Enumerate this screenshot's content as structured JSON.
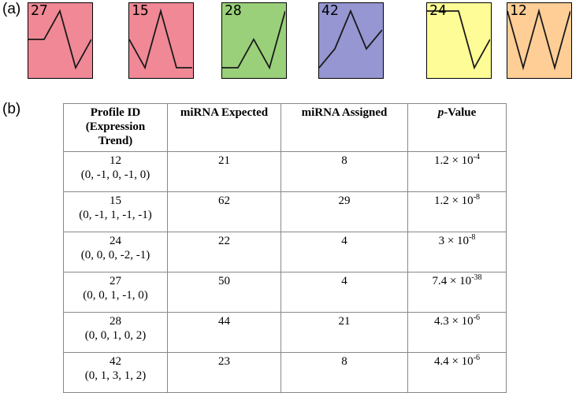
{
  "panel_a_label": "(a)",
  "panel_b_label": "(b)",
  "profiles": [
    {
      "id": "27",
      "color": "#f08896",
      "trend": [
        0,
        0,
        1,
        -1,
        0
      ]
    },
    {
      "id": "15",
      "color": "#f08896",
      "trend": [
        0,
        -1,
        1,
        -1,
        -1
      ]
    },
    {
      "id": "28",
      "color": "#9ad07a",
      "trend": [
        0,
        0,
        1,
        0,
        2
      ]
    },
    {
      "id": "42",
      "color": "#9696d2",
      "trend": [
        0,
        1,
        3,
        1,
        2
      ]
    },
    {
      "id": "24",
      "color": "#fefc96",
      "trend": [
        0,
        0,
        0,
        -2,
        -1
      ]
    },
    {
      "id": "12",
      "color": "#fece96",
      "trend": [
        0,
        -1,
        0,
        -1,
        0
      ]
    }
  ],
  "table": {
    "headers": {
      "profile_line1": "Profile ID",
      "profile_line2": "(Expression",
      "profile_line3": "Trend)",
      "expected": "miRNA Expected",
      "assigned": "miRNA Assigned",
      "pvalue_italic": "p",
      "pvalue_rest": "-Value"
    },
    "rows": [
      {
        "id": "12",
        "trend": "(0, -1, 0, -1, 0)",
        "expected": "21",
        "assigned": "8",
        "p_mant": "1.2 × 10",
        "p_exp": "-4"
      },
      {
        "id": "15",
        "trend": "(0, -1, 1, -1, -1)",
        "expected": "62",
        "assigned": "29",
        "p_mant": "1.2 × 10",
        "p_exp": "-8"
      },
      {
        "id": "24",
        "trend": "(0, 0, 0, -2, -1)",
        "expected": "22",
        "assigned": "4",
        "p_mant": "3 × 10",
        "p_exp": "-8"
      },
      {
        "id": "27",
        "trend": "(0, 0, 1, -1, 0)",
        "expected": "50",
        "assigned": "4",
        "p_mant": "7.4 × 10",
        "p_exp": "-38"
      },
      {
        "id": "28",
        "trend": "(0, 0, 1, 0, 2)",
        "expected": "44",
        "assigned": "21",
        "p_mant": "4.3 × 10",
        "p_exp": "-6"
      },
      {
        "id": "42",
        "trend": "(0, 1, 3, 1, 2)",
        "expected": "23",
        "assigned": "8",
        "p_mant": "4.4 × 10",
        "p_exp": "-6"
      }
    ]
  }
}
